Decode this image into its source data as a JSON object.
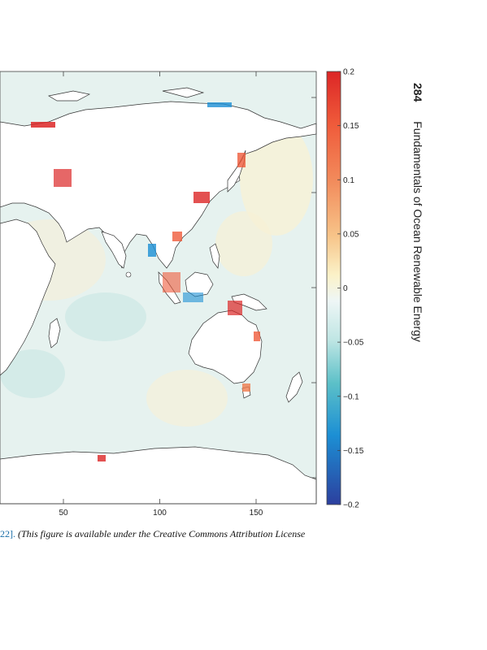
{
  "running_head": {
    "page_number": "284",
    "book_title": "Fundamentals of Ocean Renewable Energy"
  },
  "caption": {
    "ref_text": "22].",
    "note_text": "(This figure is available under the Creative Commons Attribution License"
  },
  "chart_data": {
    "type": "heatmap",
    "title": "",
    "xlabel": "",
    "ylabel": "",
    "x_tick_labels": [
      "50",
      "100",
      "150"
    ],
    "x_ticks": [
      50,
      100,
      150
    ],
    "xlim": [
      0,
      180
    ],
    "colorbar": {
      "ticks": [
        0.2,
        0.15,
        0.1,
        0.05,
        0,
        -0.05,
        -0.1,
        -0.15,
        -0.2
      ],
      "tick_labels": [
        "0.2",
        "0.15",
        "0.1",
        "0.05",
        "0",
        "−0.05",
        "−0.1",
        "−0.15",
        "−0.2"
      ],
      "range": [
        -0.2,
        0.2
      ],
      "colors": [
        "#2c3f9e",
        "#1c8fd4",
        "#5cc0c8",
        "#bfe6e4",
        "#eef6f6",
        "#fbf2c8",
        "#f7c489",
        "#ef7a4c",
        "#dc2626"
      ]
    }
  }
}
